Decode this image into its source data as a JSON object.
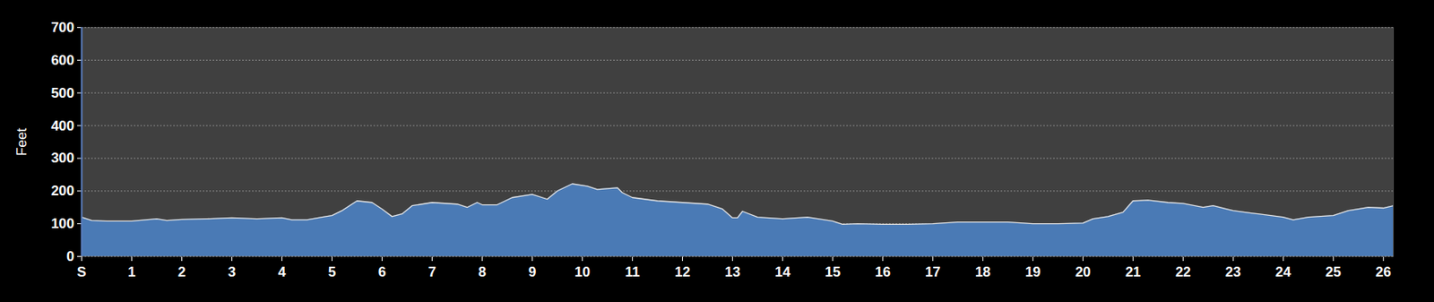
{
  "chart_data": {
    "type": "area",
    "y_label": "Feet",
    "x": [
      0,
      0.2,
      0.5,
      1,
      1.5,
      1.7,
      2,
      2.5,
      3,
      3.5,
      4,
      4.2,
      4.5,
      4.8,
      5,
      5.2,
      5.5,
      5.8,
      6,
      6.2,
      6.4,
      6.6,
      7,
      7.5,
      7.7,
      7.9,
      8,
      8.3,
      8.6,
      9,
      9.3,
      9.5,
      9.8,
      10.1,
      10.3,
      10.7,
      10.8,
      11,
      11.5,
      12,
      12.5,
      12.8,
      13,
      13.1,
      13.2,
      13.5,
      14,
      14.5,
      15,
      15.2,
      15.5,
      16,
      16.5,
      17,
      17.5,
      18,
      18.5,
      19,
      19.5,
      20,
      20.2,
      20.5,
      20.8,
      21,
      21.3,
      21.7,
      22,
      22.4,
      22.6,
      23,
      23.5,
      24,
      24.2,
      24.5,
      25,
      25.3,
      25.7,
      26,
      26.2
    ],
    "values": [
      120,
      110,
      108,
      108,
      115,
      110,
      113,
      115,
      118,
      115,
      118,
      112,
      112,
      120,
      125,
      140,
      170,
      165,
      145,
      122,
      130,
      155,
      165,
      160,
      150,
      165,
      158,
      158,
      180,
      190,
      175,
      200,
      222,
      215,
      205,
      210,
      195,
      180,
      170,
      165,
      160,
      145,
      118,
      118,
      138,
      120,
      115,
      120,
      108,
      98,
      100,
      98,
      98,
      100,
      105,
      105,
      105,
      100,
      100,
      102,
      115,
      122,
      135,
      170,
      172,
      165,
      162,
      150,
      155,
      140,
      130,
      120,
      112,
      120,
      125,
      140,
      150,
      148,
      155
    ],
    "color": "#4a7ab5",
    "xlim": [
      0,
      26.2
    ],
    "xticks": [
      {
        "value": 0,
        "label": "S"
      },
      1,
      2,
      3,
      4,
      5,
      6,
      7,
      8,
      9,
      10,
      11,
      12,
      13,
      14,
      15,
      16,
      17,
      18,
      19,
      20,
      21,
      22,
      23,
      24,
      25,
      26
    ],
    "ylim": [
      0,
      700
    ],
    "yticks": [
      0,
      100,
      200,
      300,
      400,
      500,
      600,
      700
    ],
    "grid": true
  }
}
